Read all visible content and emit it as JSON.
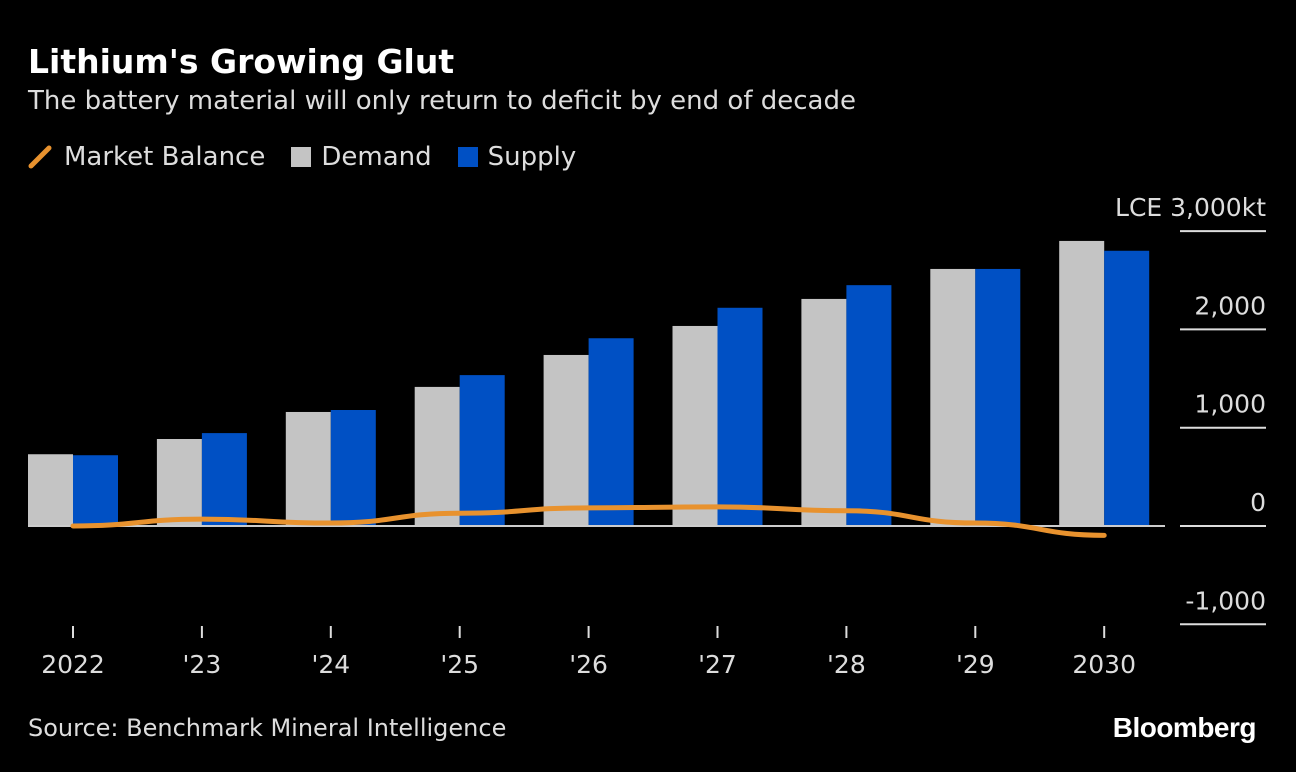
{
  "header": {
    "title": "Lithium's Growing Glut",
    "subtitle": "The battery material will only return to deficit by end of decade"
  },
  "legend": [
    {
      "label": "Market Balance",
      "color": "#e8922e",
      "kind": "line"
    },
    {
      "label": "Demand",
      "color": "#c4c4c4",
      "kind": "bar"
    },
    {
      "label": "Supply",
      "color": "#0050c4",
      "kind": "bar"
    }
  ],
  "footer": {
    "source": "Source: Benchmark Mineral Intelligence",
    "logo": "Bloomberg"
  },
  "chart_data": {
    "type": "bar",
    "title": "Lithium's Growing Glut",
    "subtitle": "The battery material will only return to deficit by end of decade",
    "unit_prefix": "LCE",
    "unit_suffix": "kt",
    "categories": [
      "2022",
      "'23",
      "'24",
      "'25",
      "'26",
      "'27",
      "'28",
      "'29",
      "2030"
    ],
    "series": [
      {
        "name": "Demand",
        "type": "bar",
        "color": "#c4c4c4",
        "values": [
          730,
          885,
          1160,
          1415,
          1740,
          2035,
          2310,
          2615,
          2900
        ]
      },
      {
        "name": "Supply",
        "type": "bar",
        "color": "#0050c4",
        "values": [
          720,
          945,
          1180,
          1535,
          1910,
          2220,
          2450,
          2615,
          2800
        ]
      },
      {
        "name": "Market Balance",
        "type": "line",
        "color": "#e8922e",
        "values": [
          0,
          70,
          30,
          130,
          185,
          195,
          155,
          30,
          -95
        ]
      }
    ],
    "ylim": [
      -1000,
      3000
    ],
    "yticks": [
      -1000,
      0,
      1000,
      2000,
      3000
    ],
    "ytick_labels": [
      "-1,000",
      "0",
      "1,000",
      "2,000",
      "3,000"
    ],
    "y_axis_side": "right",
    "grid": false,
    "legend_position": "top-left"
  }
}
